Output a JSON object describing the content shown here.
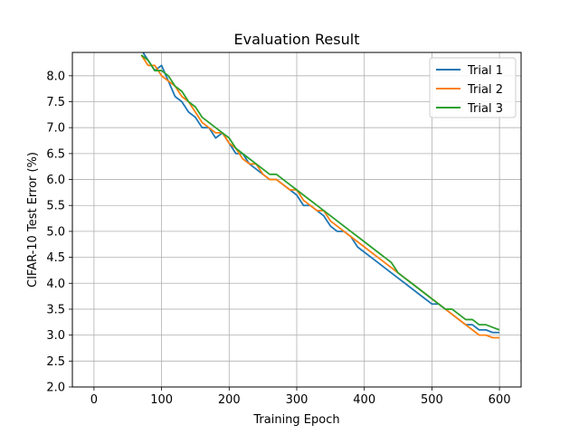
{
  "chart_data": {
    "type": "line",
    "title": "Evaluation Result",
    "xlabel": "Training Epoch",
    "ylabel": "CIFAR-10 Test Error (%)",
    "xlim": [
      -32,
      632
    ],
    "ylim": [
      2.0,
      8.45
    ],
    "xticks": [
      0,
      100,
      200,
      300,
      400,
      500,
      600
    ],
    "yticks": [
      2.0,
      2.5,
      3.0,
      3.5,
      4.0,
      4.5,
      5.0,
      5.5,
      6.0,
      6.5,
      7.0,
      7.5,
      8.0
    ],
    "grid": true,
    "legend_position": "top-right",
    "series": [
      {
        "name": "Trial 1",
        "color": "#1f77b4",
        "x": [
          70,
          80,
          90,
          100,
          110,
          120,
          130,
          140,
          150,
          160,
          170,
          180,
          190,
          200,
          210,
          220,
          230,
          240,
          250,
          260,
          270,
          280,
          290,
          300,
          310,
          320,
          330,
          340,
          350,
          360,
          370,
          380,
          390,
          400,
          410,
          420,
          430,
          440,
          450,
          460,
          470,
          480,
          490,
          500,
          510,
          520,
          530,
          540,
          550,
          560,
          570,
          580,
          590,
          600
        ],
        "y": [
          8.5,
          8.3,
          8.1,
          8.2,
          7.9,
          7.6,
          7.5,
          7.3,
          7.2,
          7.0,
          7.0,
          6.8,
          6.9,
          6.7,
          6.5,
          6.5,
          6.3,
          6.2,
          6.1,
          6.0,
          6.0,
          5.9,
          5.8,
          5.7,
          5.5,
          5.5,
          5.4,
          5.3,
          5.1,
          5.0,
          5.0,
          4.9,
          4.7,
          4.6,
          4.5,
          4.4,
          4.3,
          4.2,
          4.1,
          4.0,
          3.9,
          3.8,
          3.7,
          3.6,
          3.6,
          3.5,
          3.4,
          3.3,
          3.2,
          3.2,
          3.1,
          3.1,
          3.05,
          3.05
        ]
      },
      {
        "name": "Trial 2",
        "color": "#ff7f0e",
        "x": [
          70,
          80,
          90,
          100,
          110,
          120,
          130,
          140,
          150,
          160,
          170,
          180,
          190,
          200,
          210,
          220,
          230,
          240,
          250,
          260,
          270,
          280,
          290,
          300,
          310,
          320,
          330,
          340,
          350,
          360,
          370,
          380,
          390,
          400,
          410,
          420,
          430,
          440,
          450,
          460,
          470,
          480,
          490,
          500,
          510,
          520,
          530,
          540,
          550,
          560,
          570,
          580,
          590,
          600
        ],
        "y": [
          8.4,
          8.2,
          8.2,
          8.0,
          7.9,
          7.8,
          7.6,
          7.5,
          7.3,
          7.1,
          7.0,
          6.9,
          6.9,
          6.7,
          6.6,
          6.4,
          6.3,
          6.3,
          6.1,
          6.0,
          6.0,
          5.9,
          5.8,
          5.8,
          5.6,
          5.5,
          5.4,
          5.4,
          5.2,
          5.1,
          5.0,
          4.9,
          4.8,
          4.7,
          4.6,
          4.5,
          4.4,
          4.3,
          4.2,
          4.1,
          4.0,
          3.9,
          3.8,
          3.7,
          3.6,
          3.5,
          3.4,
          3.3,
          3.2,
          3.1,
          3.0,
          3.0,
          2.95,
          2.95
        ]
      },
      {
        "name": "Trial 3",
        "color": "#2ca02c",
        "x": [
          70,
          80,
          90,
          100,
          110,
          120,
          130,
          140,
          150,
          160,
          170,
          180,
          190,
          200,
          210,
          220,
          230,
          240,
          250,
          260,
          270,
          280,
          290,
          300,
          310,
          320,
          330,
          340,
          350,
          360,
          370,
          380,
          390,
          400,
          410,
          420,
          430,
          440,
          450,
          460,
          470,
          480,
          490,
          500,
          510,
          520,
          530,
          540,
          550,
          560,
          570,
          580,
          590,
          600
        ],
        "y": [
          8.4,
          8.3,
          8.1,
          8.1,
          8.0,
          7.8,
          7.7,
          7.5,
          7.4,
          7.2,
          7.1,
          7.0,
          6.9,
          6.8,
          6.6,
          6.5,
          6.4,
          6.3,
          6.2,
          6.1,
          6.1,
          6.0,
          5.9,
          5.8,
          5.7,
          5.6,
          5.5,
          5.4,
          5.3,
          5.2,
          5.1,
          5.0,
          4.9,
          4.8,
          4.7,
          4.6,
          4.5,
          4.4,
          4.2,
          4.1,
          4.0,
          3.9,
          3.8,
          3.7,
          3.6,
          3.5,
          3.5,
          3.4,
          3.3,
          3.3,
          3.2,
          3.2,
          3.15,
          3.1
        ]
      }
    ]
  }
}
